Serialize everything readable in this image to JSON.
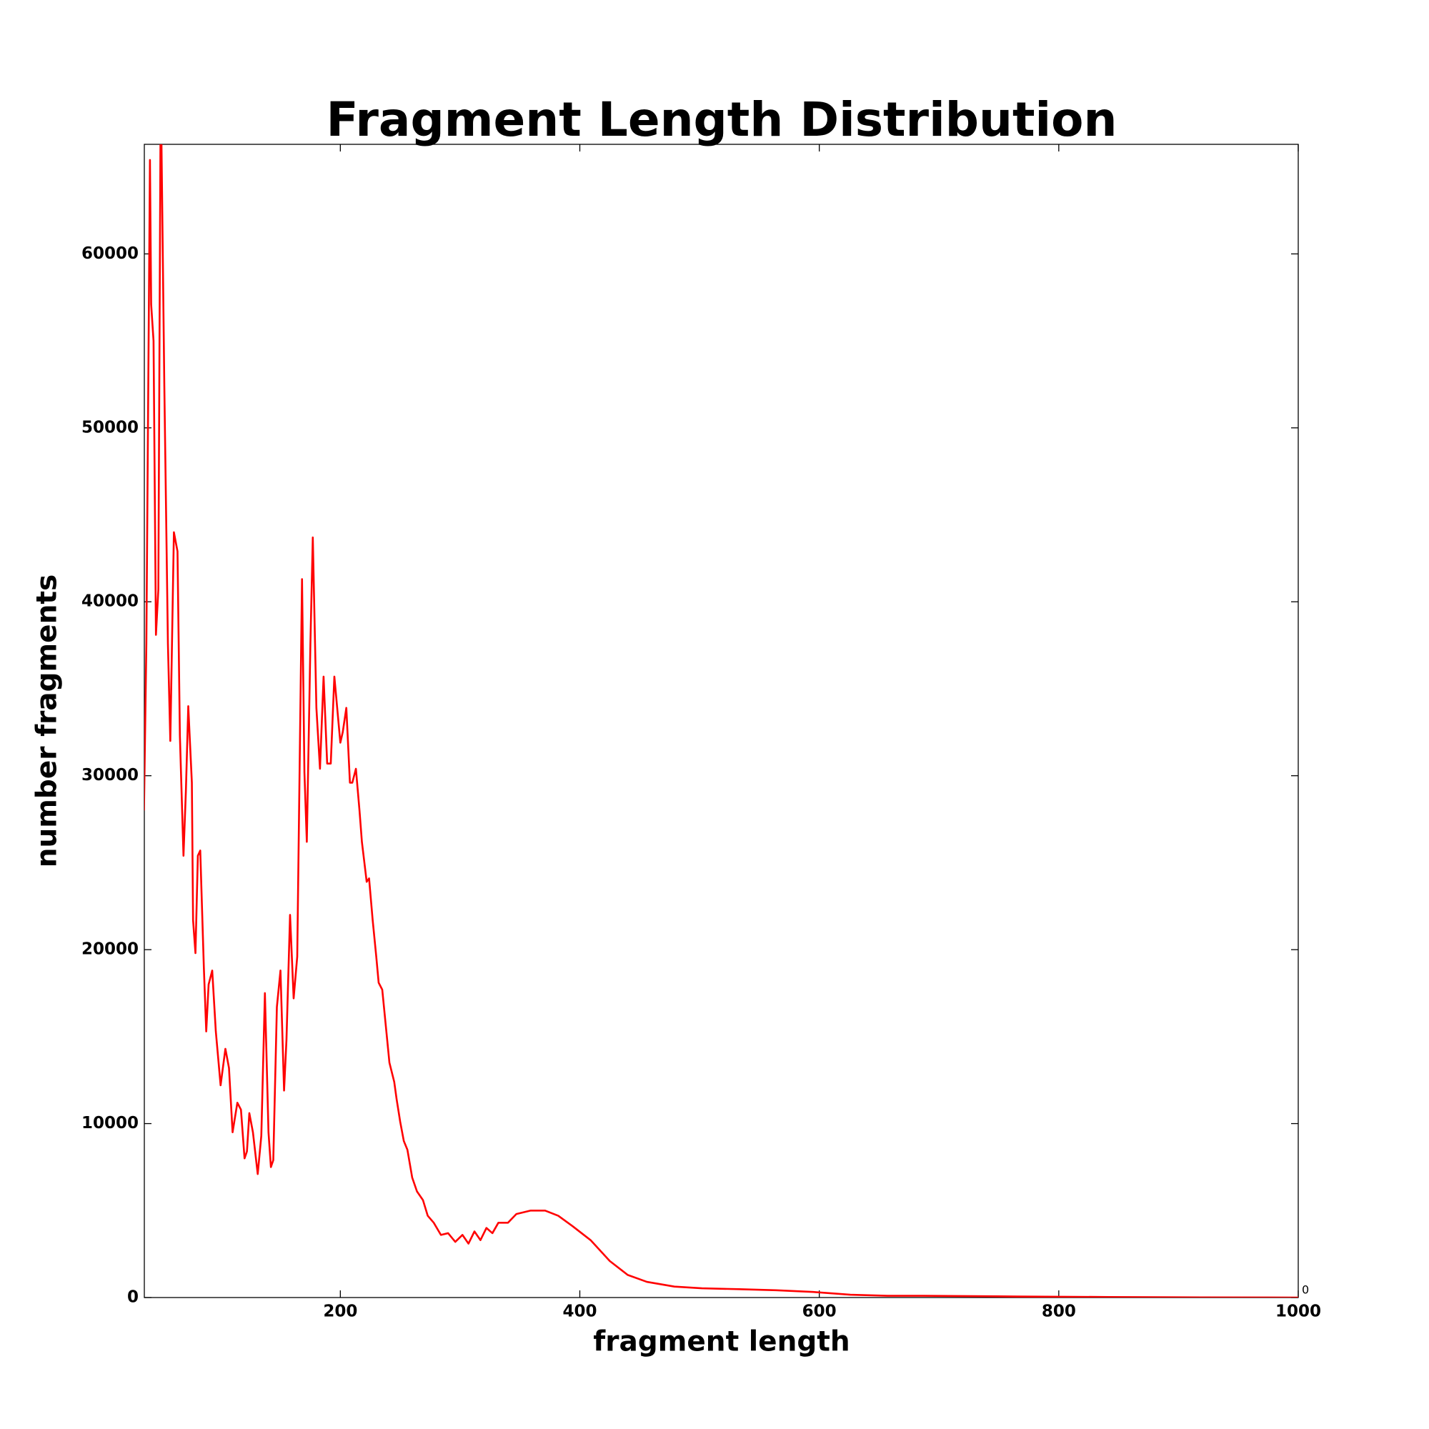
{
  "chart_data": {
    "type": "line",
    "title": "Fragment Length Distribution",
    "x_label": "fragment length",
    "y_label": "number fragments",
    "annotation": "0",
    "color": "#ff0000",
    "x": [
      36,
      38,
      41,
      42,
      44,
      46,
      48,
      50,
      53,
      56,
      58,
      61,
      64,
      66,
      69,
      71,
      73,
      76,
      77,
      79,
      81,
      83,
      86,
      88,
      90,
      93,
      96,
      100,
      104,
      107,
      110,
      114,
      117,
      120,
      122,
      124,
      127,
      131,
      134,
      137,
      140,
      142,
      144,
      147,
      150,
      153,
      155,
      158,
      161,
      164,
      168,
      170,
      172,
      175,
      177,
      180,
      183,
      186,
      189,
      192,
      195,
      200,
      202,
      205,
      208,
      210,
      213,
      216,
      218,
      222,
      224,
      227,
      230,
      232,
      235,
      238,
      241,
      245,
      247,
      250,
      253,
      256,
      260,
      264,
      269,
      273,
      278,
      284,
      290,
      296,
      302,
      307,
      312,
      317,
      322,
      327,
      332,
      340,
      347,
      359,
      371,
      382,
      394,
      409,
      425,
      440,
      456,
      479,
      502,
      533,
      564,
      595,
      626,
      657,
      687,
      765,
      842,
      919,
      1000
    ],
    "values": [
      28000,
      37600,
      65400,
      57100,
      55000,
      38100,
      40700,
      70000,
      52400,
      37600,
      32000,
      44000,
      42900,
      32300,
      25400,
      29100,
      34000,
      29600,
      21700,
      19800,
      25400,
      25700,
      19000,
      15300,
      18000,
      18800,
      15300,
      12200,
      14300,
      13200,
      9500,
      11200,
      10800,
      8000,
      8400,
      10600,
      9500,
      7100,
      9300,
      17500,
      9500,
      7500,
      7900,
      16700,
      18800,
      11900,
      14800,
      22000,
      17200,
      19600,
      41300,
      30200,
      26200,
      37600,
      43700,
      33900,
      30400,
      35700,
      30700,
      30700,
      35700,
      31900,
      32500,
      33900,
      29600,
      29600,
      30400,
      28000,
      26200,
      23900,
      24100,
      21700,
      19600,
      18100,
      17700,
      15600,
      13500,
      12400,
      11400,
      10100,
      9000,
      8500,
      6900,
      6100,
      5600,
      4700,
      4300,
      3600,
      3700,
      3200,
      3600,
      3100,
      3800,
      3300,
      4000,
      3700,
      4300,
      4300,
      4800,
      5000,
      5000,
      4700,
      4100,
      3300,
      2100,
      1300,
      900,
      630,
      530,
      480,
      420,
      320,
      160,
      100,
      100,
      60,
      30,
      10,
      0
    ],
    "xlim": [
      36.3,
      1000
    ],
    "ylim": [
      0,
      66300
    ],
    "xticks": [
      200,
      400,
      600,
      800,
      1000
    ],
    "yticks": [
      0,
      10000,
      20000,
      30000,
      40000,
      50000,
      60000
    ],
    "grid": false
  }
}
